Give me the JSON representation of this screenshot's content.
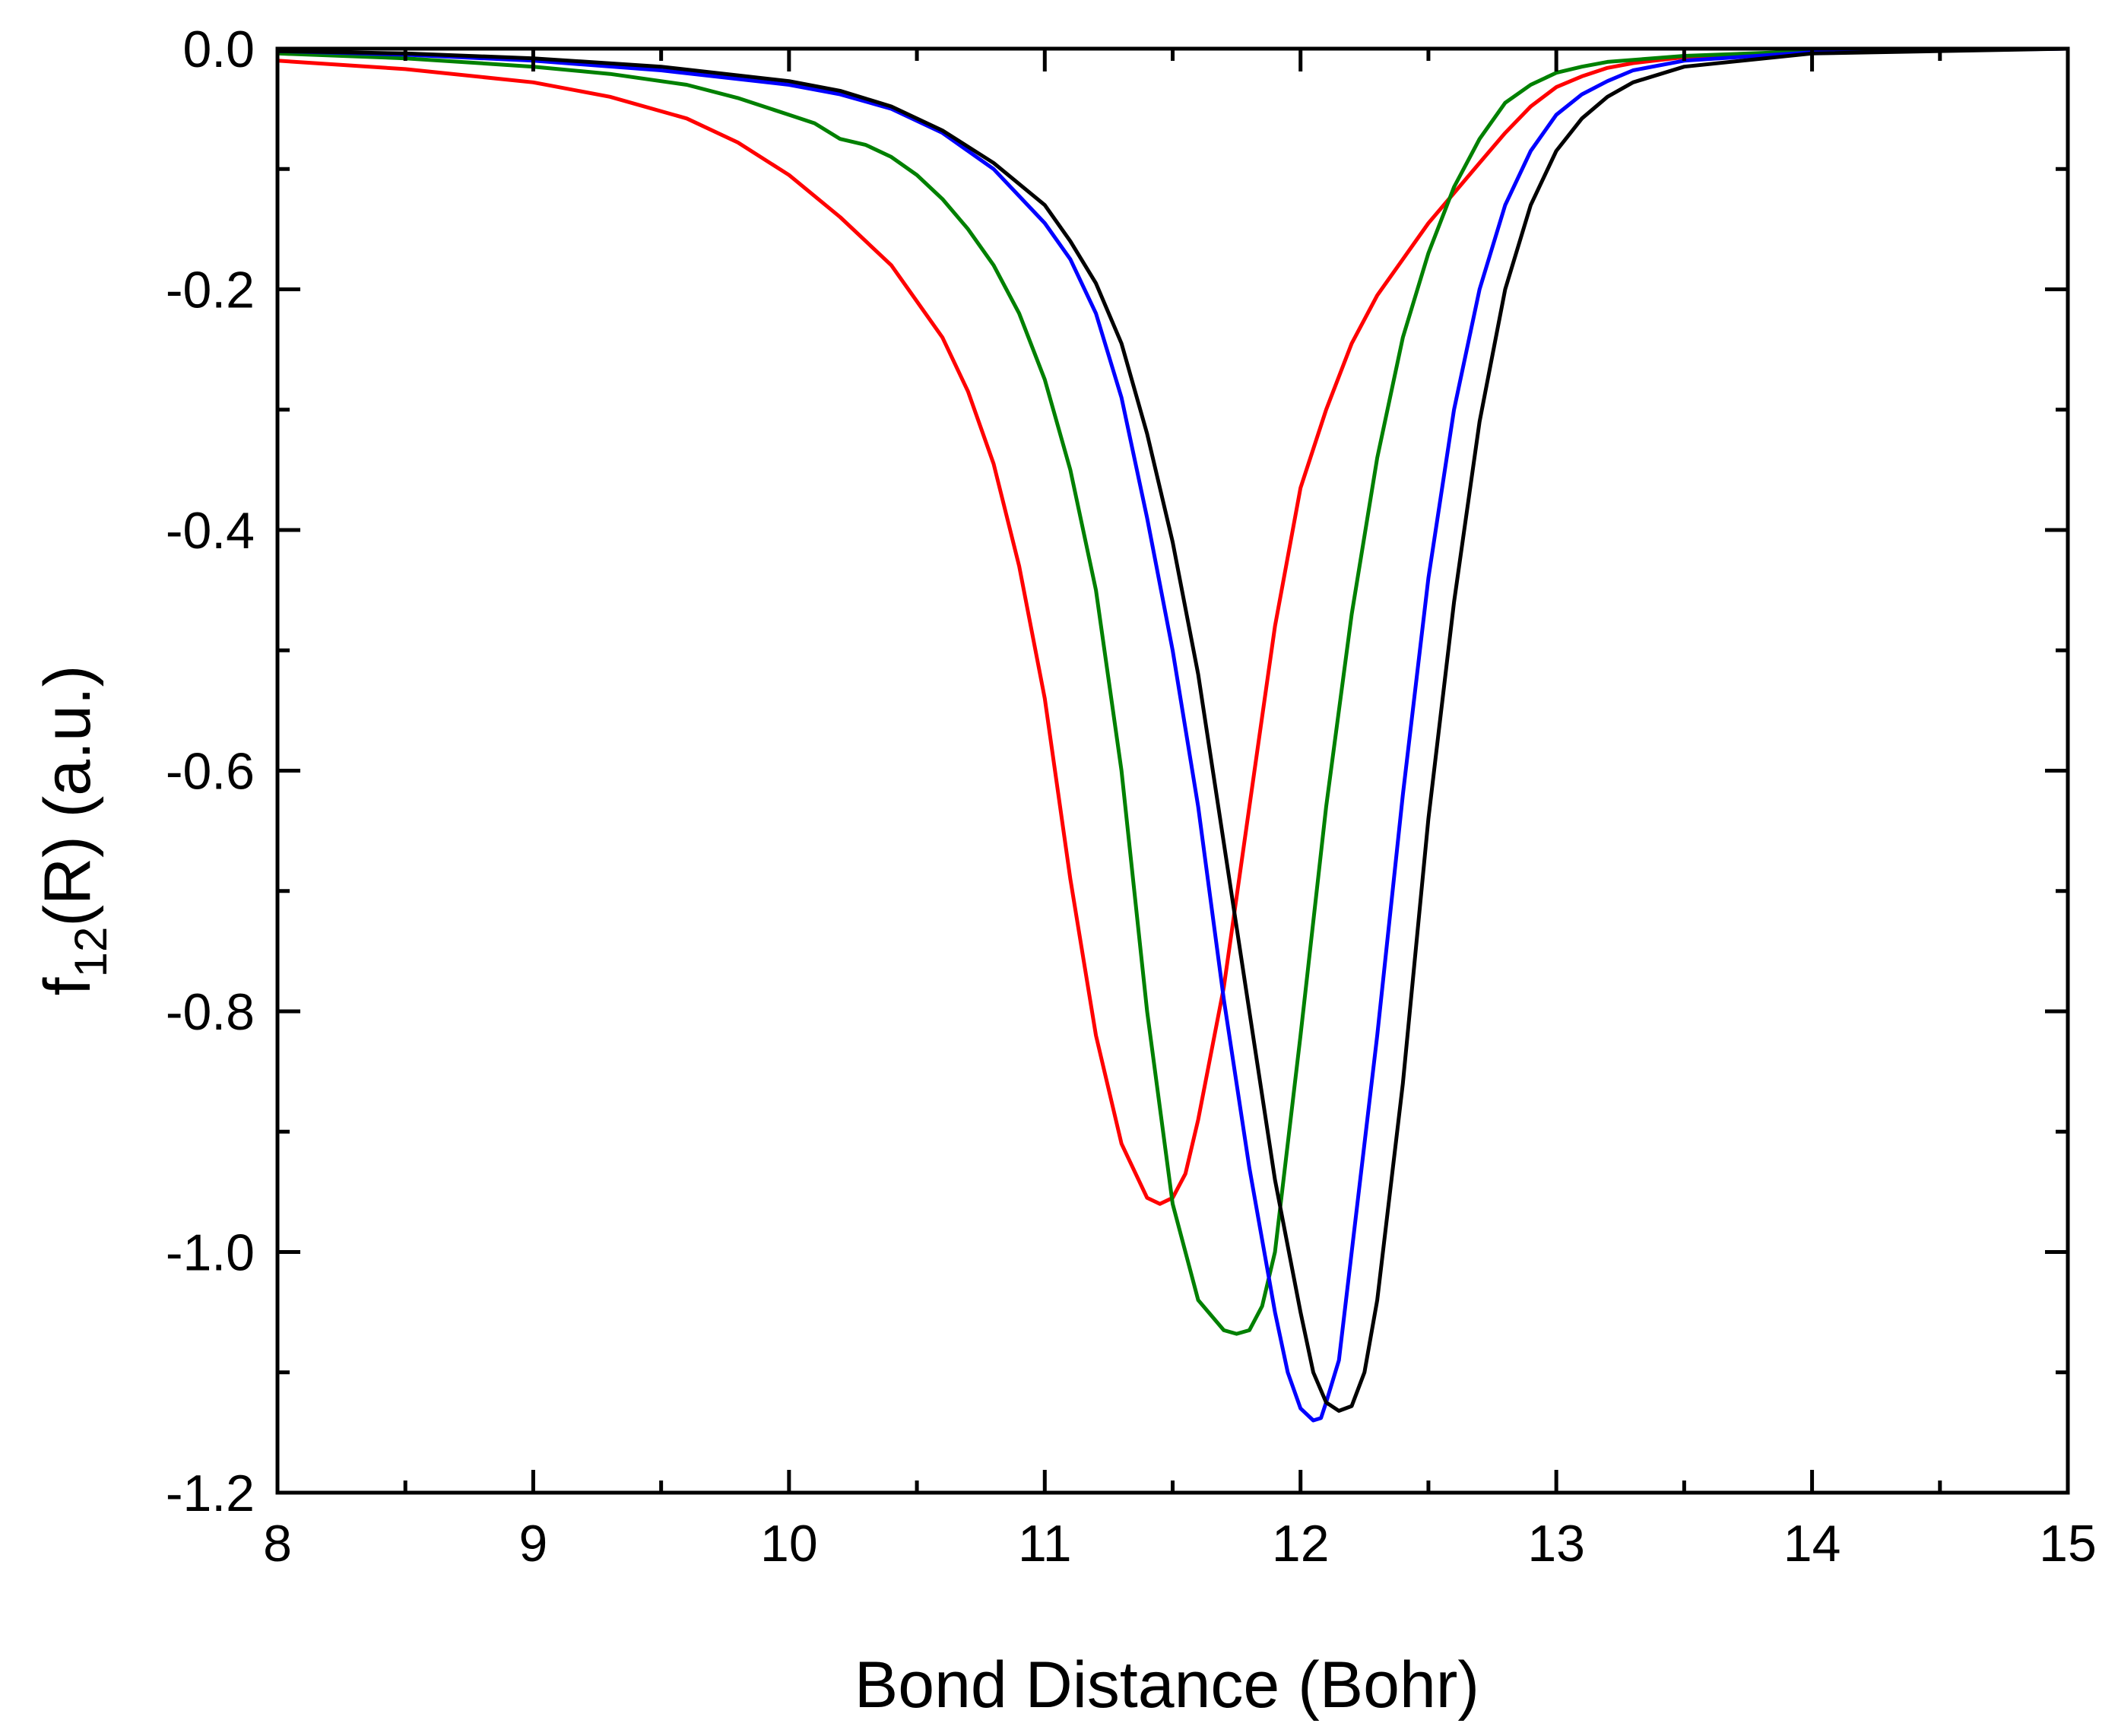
{
  "chart_data": {
    "type": "line",
    "title": "",
    "xlabel": "Bond Distance (Bohr)",
    "ylabel": {
      "base": "f",
      "subscript": "12",
      "rest": "(R) (a.u.)"
    },
    "xlim": [
      8,
      15
    ],
    "ylim": [
      -1.2,
      0.0
    ],
    "xticks": [
      8,
      9,
      10,
      11,
      12,
      13,
      14,
      15
    ],
    "yticks": [
      0.0,
      -0.2,
      -0.4,
      -0.6,
      -0.8,
      -1.0,
      -1.2
    ],
    "xtick_labels": [
      "8",
      "9",
      "10",
      "11",
      "12",
      "13",
      "14",
      "15"
    ],
    "ytick_labels": [
      "0.0",
      "-0.2",
      "-0.4",
      "-0.6",
      "-0.8",
      "-1.0",
      "-1.2"
    ],
    "grid": false,
    "legend": "none",
    "series": [
      {
        "name": "red",
        "color": "#ff0000",
        "x": [
          8.0,
          8.5,
          9.0,
          9.3,
          9.6,
          9.8,
          10.0,
          10.2,
          10.4,
          10.6,
          10.7,
          10.8,
          10.9,
          11.0,
          11.1,
          11.2,
          11.3,
          11.4,
          11.45,
          11.5,
          11.55,
          11.6,
          11.7,
          11.8,
          11.9,
          12.0,
          12.1,
          12.2,
          12.3,
          12.4,
          12.5,
          12.6,
          12.7,
          12.8,
          12.9,
          13.0,
          13.1,
          13.2,
          13.3,
          13.5,
          14.0,
          15.0
        ],
        "y": [
          -0.01,
          -0.017,
          -0.028,
          -0.04,
          -0.058,
          -0.078,
          -0.105,
          -0.14,
          -0.18,
          -0.24,
          -0.285,
          -0.345,
          -0.43,
          -0.54,
          -0.69,
          -0.82,
          -0.91,
          -0.955,
          -0.96,
          -0.955,
          -0.935,
          -0.89,
          -0.78,
          -0.63,
          -0.48,
          -0.365,
          -0.3,
          -0.245,
          -0.205,
          -0.175,
          -0.145,
          -0.12,
          -0.095,
          -0.07,
          -0.048,
          -0.032,
          -0.023,
          -0.016,
          -0.012,
          -0.007,
          -0.002,
          0.0
        ]
      },
      {
        "name": "green",
        "color": "#008000",
        "x": [
          8.0,
          8.5,
          9.0,
          9.3,
          9.6,
          9.8,
          10.0,
          10.1,
          10.2,
          10.3,
          10.4,
          10.5,
          10.6,
          10.7,
          10.8,
          10.9,
          11.0,
          11.1,
          11.2,
          11.3,
          11.4,
          11.5,
          11.6,
          11.7,
          11.75,
          11.8,
          11.85,
          11.9,
          12.0,
          12.1,
          12.2,
          12.3,
          12.4,
          12.5,
          12.6,
          12.7,
          12.8,
          12.9,
          13.0,
          13.1,
          13.2,
          13.5,
          14.0,
          15.0
        ],
        "y": [
          -0.004,
          -0.008,
          -0.015,
          -0.021,
          -0.03,
          -0.041,
          -0.055,
          -0.062,
          -0.075,
          -0.08,
          -0.09,
          -0.105,
          -0.125,
          -0.15,
          -0.18,
          -0.22,
          -0.275,
          -0.35,
          -0.45,
          -0.6,
          -0.8,
          -0.96,
          -1.04,
          -1.065,
          -1.068,
          -1.065,
          -1.045,
          -1.0,
          -0.82,
          -0.63,
          -0.47,
          -0.34,
          -0.24,
          -0.17,
          -0.115,
          -0.075,
          -0.045,
          -0.03,
          -0.02,
          -0.015,
          -0.011,
          -0.006,
          -0.002,
          0.0
        ]
      },
      {
        "name": "blue",
        "color": "#0000ff",
        "x": [
          8.0,
          8.5,
          9.0,
          9.5,
          10.0,
          10.2,
          10.4,
          10.6,
          10.8,
          11.0,
          11.1,
          11.2,
          11.3,
          11.4,
          11.5,
          11.6,
          11.7,
          11.8,
          11.9,
          11.95,
          12.0,
          12.05,
          12.08,
          12.1,
          12.15,
          12.2,
          12.3,
          12.4,
          12.5,
          12.6,
          12.7,
          12.8,
          12.9,
          13.0,
          13.1,
          13.2,
          13.3,
          13.5,
          14.0,
          15.0
        ],
        "y": [
          -0.002,
          -0.005,
          -0.01,
          -0.018,
          -0.03,
          -0.038,
          -0.05,
          -0.07,
          -0.1,
          -0.145,
          -0.175,
          -0.22,
          -0.29,
          -0.39,
          -0.5,
          -0.63,
          -0.79,
          -0.93,
          -1.05,
          -1.1,
          -1.13,
          -1.14,
          -1.138,
          -1.125,
          -1.09,
          -1.0,
          -0.82,
          -0.62,
          -0.44,
          -0.3,
          -0.2,
          -0.13,
          -0.085,
          -0.055,
          -0.038,
          -0.027,
          -0.018,
          -0.01,
          -0.003,
          0.0
        ]
      },
      {
        "name": "black",
        "color": "#000000",
        "x": [
          8.0,
          8.5,
          9.0,
          9.5,
          10.0,
          10.2,
          10.4,
          10.6,
          10.8,
          11.0,
          11.1,
          11.2,
          11.3,
          11.4,
          11.5,
          11.6,
          11.7,
          11.8,
          11.9,
          12.0,
          12.05,
          12.1,
          12.15,
          12.2,
          12.25,
          12.3,
          12.4,
          12.5,
          12.6,
          12.7,
          12.8,
          12.9,
          13.0,
          13.1,
          13.2,
          13.3,
          13.5,
          14.0,
          15.0
        ],
        "y": [
          -0.002,
          -0.004,
          -0.008,
          -0.015,
          -0.027,
          -0.035,
          -0.048,
          -0.068,
          -0.095,
          -0.13,
          -0.16,
          -0.195,
          -0.245,
          -0.32,
          -0.41,
          -0.52,
          -0.66,
          -0.8,
          -0.94,
          -1.05,
          -1.1,
          -1.125,
          -1.132,
          -1.128,
          -1.1,
          -1.04,
          -0.86,
          -0.64,
          -0.46,
          -0.31,
          -0.2,
          -0.13,
          -0.085,
          -0.058,
          -0.04,
          -0.028,
          -0.015,
          -0.004,
          0.0
        ]
      }
    ]
  }
}
